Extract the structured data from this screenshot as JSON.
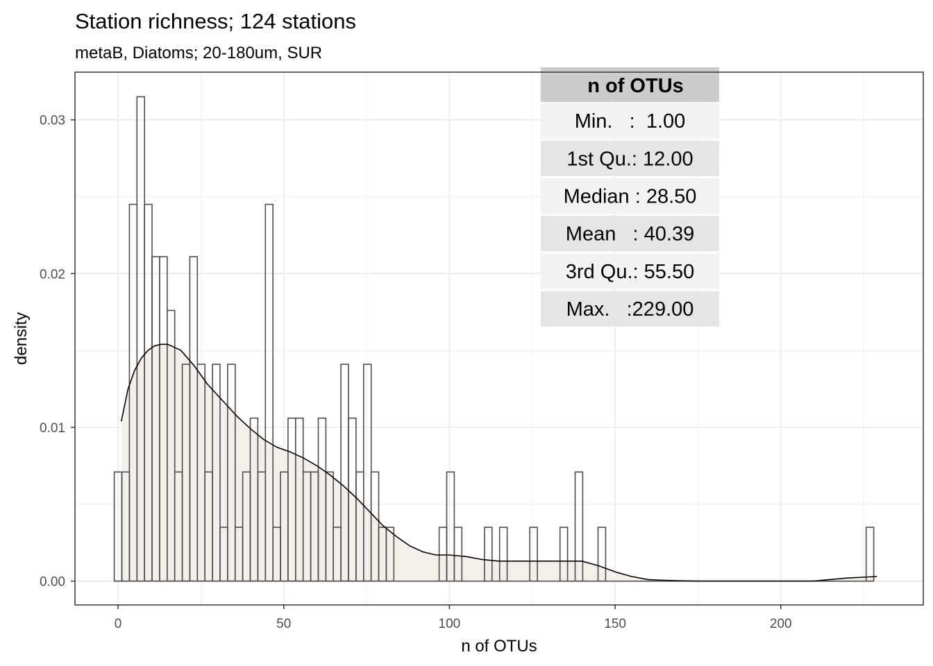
{
  "chart_data": {
    "type": "histogram",
    "title": "Station richness; 124 stations",
    "subtitle": "metaB, Diatoms; 20-180um, SUR",
    "xlabel": "n of OTUs",
    "ylabel": "density",
    "xlim": [
      -13,
      243
    ],
    "ylim": [
      -0.00155,
      0.0331
    ],
    "x_ticks": [
      0,
      50,
      100,
      150,
      200
    ],
    "x_tick_labels": [
      "0",
      "50",
      "100",
      "150",
      "200"
    ],
    "y_ticks": [
      0.0,
      0.01,
      0.02,
      0.03
    ],
    "y_tick_labels": [
      "0.00",
      "0.01",
      "0.02",
      "0.03"
    ],
    "grid": true,
    "bin_width": 2.28,
    "bins": [
      {
        "x": 0.0,
        "y": 0.0071
      },
      {
        "x": 2.28,
        "y": 0.0071
      },
      {
        "x": 4.56,
        "y": 0.0245
      },
      {
        "x": 6.84,
        "y": 0.0315
      },
      {
        "x": 9.12,
        "y": 0.0245
      },
      {
        "x": 11.4,
        "y": 0.0211
      },
      {
        "x": 13.68,
        "y": 0.0211
      },
      {
        "x": 15.96,
        "y": 0.0176
      },
      {
        "x": 18.24,
        "y": 0.0071
      },
      {
        "x": 20.52,
        "y": 0.0141
      },
      {
        "x": 22.8,
        "y": 0.0211
      },
      {
        "x": 25.08,
        "y": 0.0141
      },
      {
        "x": 27.36,
        "y": 0.0071
      },
      {
        "x": 29.64,
        "y": 0.0141
      },
      {
        "x": 31.92,
        "y": 0.0035
      },
      {
        "x": 34.2,
        "y": 0.0141
      },
      {
        "x": 36.48,
        "y": 0.0035
      },
      {
        "x": 38.76,
        "y": 0.0071
      },
      {
        "x": 41.04,
        "y": 0.0106
      },
      {
        "x": 43.32,
        "y": 0.0071
      },
      {
        "x": 45.6,
        "y": 0.0245
      },
      {
        "x": 47.88,
        "y": 0.0035
      },
      {
        "x": 50.16,
        "y": 0.0071
      },
      {
        "x": 52.44,
        "y": 0.0106
      },
      {
        "x": 54.72,
        "y": 0.0106
      },
      {
        "x": 57.0,
        "y": 0.0071
      },
      {
        "x": 59.28,
        "y": 0.0071
      },
      {
        "x": 61.56,
        "y": 0.0106
      },
      {
        "x": 63.84,
        "y": 0.0071
      },
      {
        "x": 66.12,
        "y": 0.0035
      },
      {
        "x": 68.4,
        "y": 0.0141
      },
      {
        "x": 70.68,
        "y": 0.0106
      },
      {
        "x": 72.96,
        "y": 0.0071
      },
      {
        "x": 75.24,
        "y": 0.0141
      },
      {
        "x": 77.52,
        "y": 0.0071
      },
      {
        "x": 79.8,
        "y": 0.0035
      },
      {
        "x": 82.08,
        "y": 0.0035
      },
      {
        "x": 98.04,
        "y": 0.0035
      },
      {
        "x": 100.32,
        "y": 0.0071
      },
      {
        "x": 102.6,
        "y": 0.0035
      },
      {
        "x": 111.72,
        "y": 0.0035
      },
      {
        "x": 116.28,
        "y": 0.0035
      },
      {
        "x": 125.4,
        "y": 0.0035
      },
      {
        "x": 134.52,
        "y": 0.0035
      },
      {
        "x": 139.08,
        "y": 0.0071
      },
      {
        "x": 146.0,
        "y": 0.0035
      },
      {
        "x": 226.9,
        "y": 0.0035
      }
    ],
    "density_curve": {
      "x": [
        1,
        3,
        5,
        7,
        9,
        11,
        13,
        15,
        17,
        19,
        21,
        23,
        25,
        27,
        30,
        33,
        36,
        40,
        44,
        48,
        52,
        56,
        60,
        64,
        68,
        72,
        76,
        80,
        84,
        88,
        92,
        96,
        100,
        105,
        110,
        115,
        120,
        125,
        130,
        135,
        140,
        145,
        150,
        155,
        160,
        165,
        170,
        175,
        180,
        190,
        200,
        210,
        220,
        229
      ],
      "y": [
        0.0104,
        0.0125,
        0.0137,
        0.0145,
        0.015,
        0.0153,
        0.0154,
        0.0154,
        0.0152,
        0.015,
        0.0145,
        0.014,
        0.0134,
        0.0128,
        0.0121,
        0.0114,
        0.0107,
        0.0099,
        0.0092,
        0.0087,
        0.0084,
        0.008,
        0.0075,
        0.0069,
        0.0062,
        0.0054,
        0.0045,
        0.0036,
        0.0029,
        0.0023,
        0.0019,
        0.0017,
        0.0017,
        0.0016,
        0.0014,
        0.0013,
        0.0013,
        0.0013,
        0.0013,
        0.0013,
        0.0013,
        0.001,
        0.0006,
        0.0003,
        0.0001,
        5e-05,
        2e-05,
        0.0,
        0.0,
        0.0,
        0.0,
        0.0,
        0.0002,
        0.0003
      ]
    },
    "summary_table": {
      "header": "n of OTUs",
      "rows": [
        "Min.   :  1.00",
        "1st Qu.: 12.00",
        "Median : 28.50",
        "Mean   : 40.39",
        "3rd Qu.: 55.50",
        "Max.   :229.00"
      ]
    },
    "colors": {
      "bar_outline": "#4d4d4d",
      "bar_fill": "none",
      "density_fill": "#f3efeb",
      "density_line": "#000000",
      "grid": "#ebebeb",
      "panel_border": "#333333",
      "table_header": "#cccccc",
      "table_row_light": "#f2f2f2",
      "table_row_dark": "#e5e5e5"
    }
  }
}
